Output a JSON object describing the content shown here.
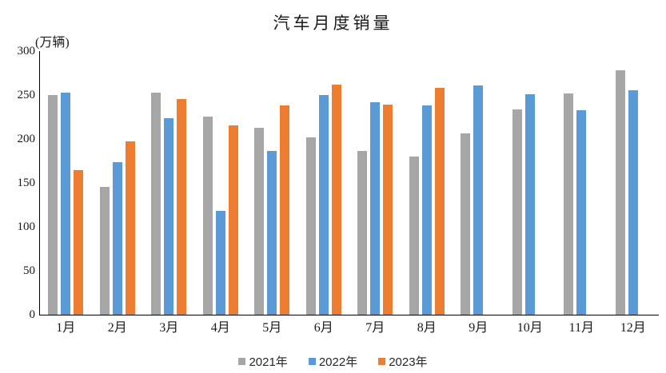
{
  "chart_data": {
    "type": "bar",
    "title": "汽车月度销量",
    "unit_label": "(万辆)",
    "categories": [
      "1月",
      "2月",
      "3月",
      "4月",
      "5月",
      "6月",
      "7月",
      "8月",
      "9月",
      "10月",
      "11月",
      "12月"
    ],
    "series": [
      {
        "name": "2021年",
        "color": "#A6A6A6",
        "values": [
          250.3,
          145.5,
          252.6,
          225.2,
          212.8,
          201.5,
          186.4,
          179.9,
          206.7,
          233.3,
          252.2,
          278.6
        ]
      },
      {
        "name": "2022年",
        "color": "#5B9BD5",
        "values": [
          253.1,
          173.7,
          223.4,
          118.1,
          186.2,
          250.2,
          242.0,
          238.3,
          261.0,
          250.5,
          232.8,
          255.6
        ]
      },
      {
        "name": "2023年",
        "color": "#ED7D31",
        "values": [
          164.9,
          197.6,
          245.1,
          215.9,
          238.2,
          262.2,
          238.8,
          258.2,
          null,
          null,
          null,
          null
        ]
      }
    ],
    "ylim": [
      0,
      300
    ],
    "yticks": [
      0,
      50,
      100,
      150,
      200,
      250,
      300
    ],
    "grid": false,
    "legend_position": "bottom",
    "axis_color": "#000000",
    "background_color": "#FFFFFF"
  }
}
